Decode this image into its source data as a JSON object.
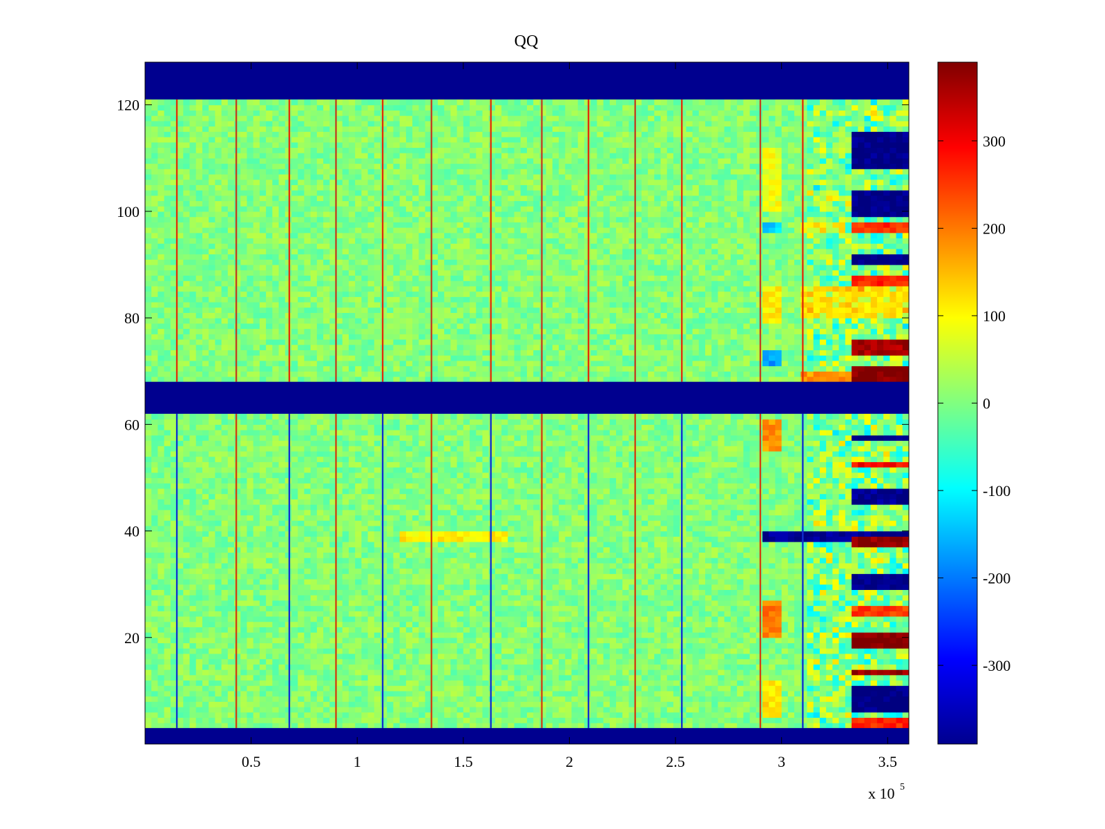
{
  "chart_data": {
    "type": "heatmap",
    "title": "QQ",
    "xlabel": "",
    "ylabel": "",
    "x_multiplier_label": "x 10",
    "x_multiplier_exponent": "5",
    "xlim": [
      0,
      3.6
    ],
    "ylim": [
      0,
      128
    ],
    "x_ticks": [
      0.5,
      1,
      1.5,
      2,
      2.5,
      3,
      3.5
    ],
    "x_tick_labels": [
      "0.5",
      "1",
      "1.5",
      "2",
      "2.5",
      "3",
      "3.5"
    ],
    "y_ticks": [
      20,
      40,
      60,
      80,
      100,
      120
    ],
    "y_tick_labels": [
      "20",
      "40",
      "60",
      "80",
      "100",
      "120"
    ],
    "colorbar": {
      "clim": [
        -390,
        390
      ],
      "ticks": [
        300,
        200,
        100,
        0,
        -100,
        -200,
        -300
      ],
      "tick_labels": [
        "300",
        "200",
        "100",
        "0",
        "-100",
        "-200",
        "-300"
      ],
      "colormap": "jet"
    },
    "masked_rows": [
      [
        121,
        128
      ],
      [
        62,
        68
      ],
      [
        0,
        3
      ]
    ],
    "spike_columns_x": [
      0.15,
      0.43,
      0.68,
      0.9,
      1.12,
      1.35,
      1.63,
      1.87,
      2.09,
      2.31,
      2.53,
      2.9,
      3.1
    ],
    "noise_level": 10,
    "anomalies": [
      {
        "x": [
          2.9,
          3.0
        ],
        "y": [
          100,
          112
        ],
        "value": 90
      },
      {
        "x": [
          2.9,
          3.0
        ],
        "y": [
          96,
          98
        ],
        "value": -130
      },
      {
        "x": [
          2.9,
          3.0
        ],
        "y": [
          79,
          86
        ],
        "value": 110
      },
      {
        "x": [
          2.9,
          3.0
        ],
        "y": [
          71,
          74
        ],
        "value": -170
      },
      {
        "x": [
          2.9,
          3.0
        ],
        "y": [
          55,
          61
        ],
        "value": 180
      },
      {
        "x": [
          2.9,
          3.0
        ],
        "y": [
          20,
          27
        ],
        "value": 200
      },
      {
        "x": [
          2.9,
          3.0
        ],
        "y": [
          5,
          12
        ],
        "value": 120
      },
      {
        "x": [
          2.9,
          3.6
        ],
        "y": [
          38.5,
          40
        ],
        "value": -380
      },
      {
        "x": [
          1.2,
          1.72
        ],
        "y": [
          38.5,
          39.5
        ],
        "value": 110
      },
      {
        "x": [
          3.1,
          3.6
        ],
        "y": [
          80,
          86
        ],
        "value": 110
      },
      {
        "x": [
          3.1,
          3.3
        ],
        "y": [
          96,
          98
        ],
        "value": 110
      },
      {
        "x": [
          3.33,
          3.6
        ],
        "y": [
          108,
          115
        ],
        "value": -390
      },
      {
        "x": [
          3.33,
          3.6
        ],
        "y": [
          99,
          104
        ],
        "value": -390
      },
      {
        "x": [
          3.33,
          3.6
        ],
        "y": [
          96,
          98
        ],
        "value": 260
      },
      {
        "x": [
          3.33,
          3.6
        ],
        "y": [
          90,
          92
        ],
        "value": -390
      },
      {
        "x": [
          3.33,
          3.6
        ],
        "y": [
          86,
          88
        ],
        "value": 270
      },
      {
        "x": [
          3.33,
          3.6
        ],
        "y": [
          73,
          76
        ],
        "value": 360
      },
      {
        "x": [
          3.33,
          3.6
        ],
        "y": [
          67,
          71
        ],
        "value": 390
      },
      {
        "x": [
          3.1,
          3.33
        ],
        "y": [
          68,
          70
        ],
        "value": 180
      },
      {
        "x": [
          3.33,
          3.6
        ],
        "y": [
          57,
          58
        ],
        "value": -390
      },
      {
        "x": [
          3.33,
          3.6
        ],
        "y": [
          52,
          53
        ],
        "value": 290
      },
      {
        "x": [
          3.33,
          3.6
        ],
        "y": [
          45,
          48
        ],
        "value": -380
      },
      {
        "x": [
          3.33,
          3.6
        ],
        "y": [
          37,
          38.5
        ],
        "value": 380
      },
      {
        "x": [
          3.33,
          3.6
        ],
        "y": [
          29,
          32
        ],
        "value": -390
      },
      {
        "x": [
          3.33,
          3.6
        ],
        "y": [
          24,
          26
        ],
        "value": 250
      },
      {
        "x": [
          3.33,
          3.6
        ],
        "y": [
          18,
          21
        ],
        "value": 390
      },
      {
        "x": [
          3.33,
          3.6
        ],
        "y": [
          13,
          14
        ],
        "value": 370
      },
      {
        "x": [
          3.33,
          3.6
        ],
        "y": [
          6,
          11
        ],
        "value": -390
      },
      {
        "x": [
          3.33,
          3.6
        ],
        "y": [
          3,
          5
        ],
        "value": 260
      }
    ]
  }
}
